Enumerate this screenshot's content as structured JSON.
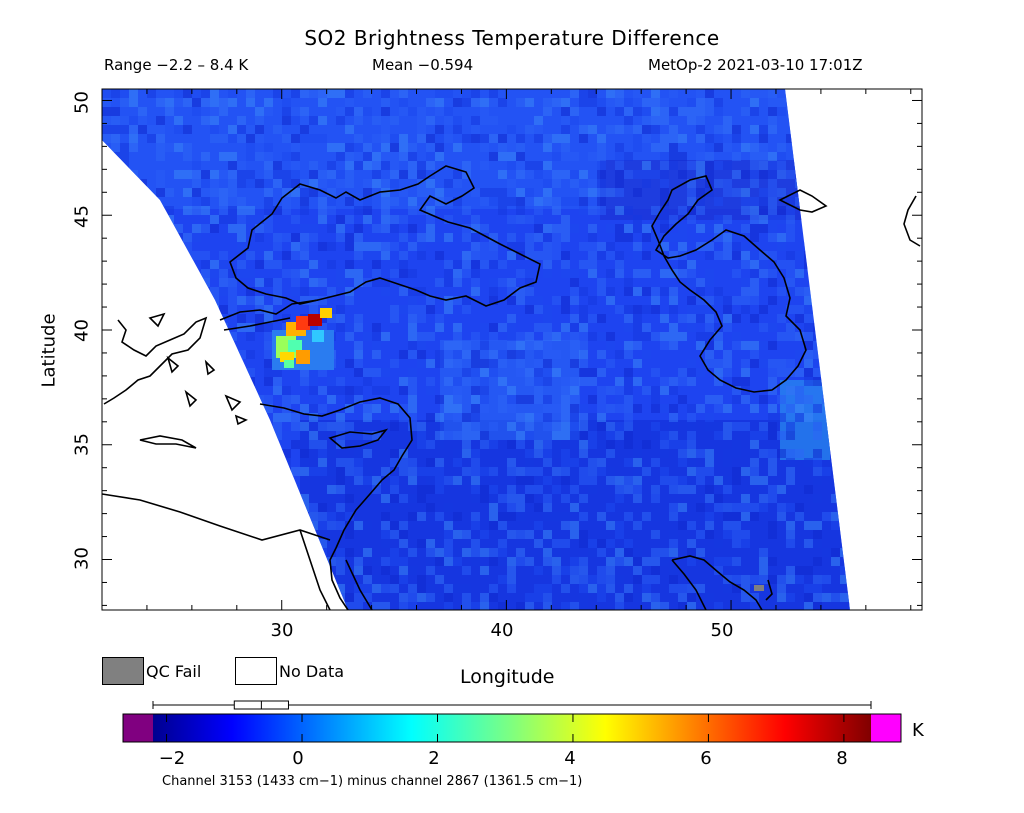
{
  "header": {
    "title": "SO2 Brightness Temperature Difference",
    "range": "Range −2.2 – 8.4 K",
    "mean": "Mean −0.594",
    "satellite_time": "MetOp-2 2021-03-10 17:01Z"
  },
  "axes": {
    "xlabel": "Longitude",
    "ylabel": "Latitude",
    "xticks": [
      "30",
      "40",
      "50"
    ],
    "yticks": [
      "50",
      "45",
      "40",
      "35",
      "30"
    ],
    "xrange": [
      22,
      58.5
    ],
    "yrange": [
      27.8,
      50.5
    ]
  },
  "legend": {
    "qc_fail": "QC Fail",
    "no_data": "No Data",
    "qc_fail_color": "#808080",
    "no_data_color": "#ffffff"
  },
  "colorbar": {
    "unit": "K",
    "ticks": [
      "−2",
      "0",
      "2",
      "4",
      "6",
      "8"
    ],
    "tick_values": [
      -2,
      0,
      2,
      4,
      6,
      8
    ],
    "vmin": -2.2,
    "vmax": 8.4,
    "under_color": "#800080",
    "over_color": "#ff00ff",
    "stats_box": {
      "q1": -1.0,
      "median": -0.6,
      "q3": -0.2
    }
  },
  "footer": "Channel 3153 (1433 cm−1) minus channel 2867 (1361.5 cm−1)",
  "colors": {
    "background_swath": "#1a3cf0",
    "hotspot": "#d21e1e"
  }
}
